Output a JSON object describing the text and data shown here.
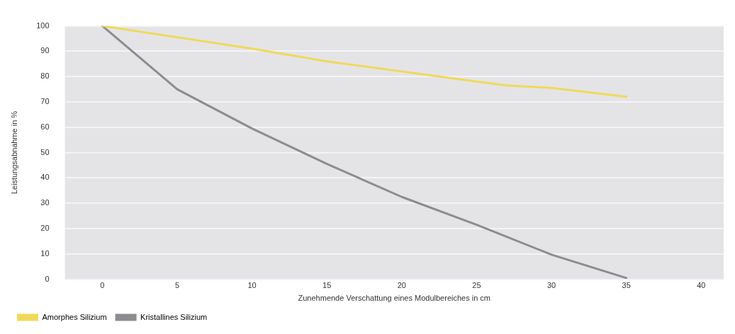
{
  "chart_data": {
    "type": "line",
    "xlabel": "Zunehmende Verschattung eines Modulbereiches in cm",
    "ylabel": "Leistungsabnahme in %",
    "xlim": [
      -2.5,
      41.5
    ],
    "xticks": [
      0,
      5,
      10,
      15,
      20,
      25,
      30,
      35,
      40
    ],
    "ylim": [
      0,
      100
    ],
    "yticks": [
      0,
      10,
      20,
      30,
      40,
      50,
      60,
      70,
      80,
      90,
      100
    ],
    "grid": "y",
    "legend": "bottom left",
    "marker": "none",
    "line_style": "solid",
    "series": [
      {
        "name": "Amorphes Silizium",
        "color": "#efd95a",
        "x": [
          0,
          5,
          10,
          15,
          20,
          25,
          27,
          30,
          35
        ],
        "values": [
          100,
          95.5,
          91,
          86,
          82,
          78,
          76.5,
          75.5,
          72
        ]
      },
      {
        "name": "Kristallines Silizium",
        "color": "#8c8c90",
        "x": [
          0,
          5,
          10,
          15,
          20,
          25,
          30,
          35
        ],
        "values": [
          100,
          75,
          59.5,
          45.5,
          32.5,
          21.5,
          9.7,
          0.5
        ]
      }
    ]
  }
}
